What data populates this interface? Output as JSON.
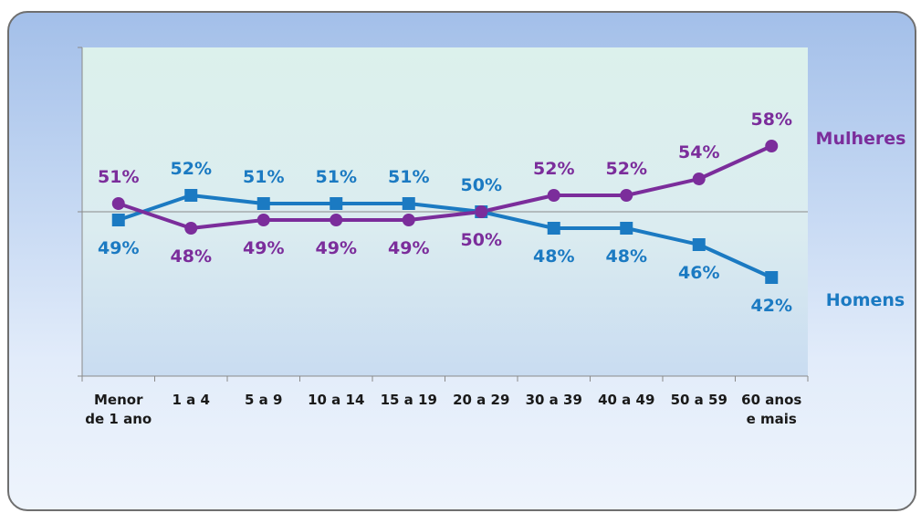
{
  "chart_data": {
    "type": "line",
    "title": "",
    "xlabel": "",
    "ylabel": "",
    "categories": [
      [
        "Menor",
        "de 1 ano"
      ],
      [
        "1 a 4"
      ],
      [
        "5 a 9"
      ],
      [
        "10 a 14"
      ],
      [
        "15 a 19"
      ],
      [
        "20 a 29"
      ],
      [
        "30 a 39"
      ],
      [
        "40 a 49"
      ],
      [
        "50 a 59"
      ],
      [
        "60 anos",
        "e mais"
      ]
    ],
    "ylim": [
      30,
      70
    ],
    "baseline": 50,
    "grid": false,
    "legend_position": "right, inline at series ends",
    "series": [
      {
        "name": "Homens",
        "marker": "square",
        "color": "#1b7ac2",
        "values": [
          49,
          52,
          51,
          51,
          51,
          50,
          48,
          48,
          46,
          42
        ],
        "labels": [
          "49%",
          "52%",
          "51%",
          "51%",
          "51%",
          "50%",
          "48%",
          "48%",
          "46%",
          "42%"
        ]
      },
      {
        "name": "Mulheres",
        "marker": "circle",
        "color": "#7b2d9b",
        "values": [
          51,
          48,
          49,
          49,
          49,
          50,
          52,
          52,
          54,
          58
        ],
        "labels": [
          "51%",
          "48%",
          "49%",
          "49%",
          "49%",
          "50%",
          "52%",
          "52%",
          "54%",
          "58%"
        ]
      }
    ]
  }
}
